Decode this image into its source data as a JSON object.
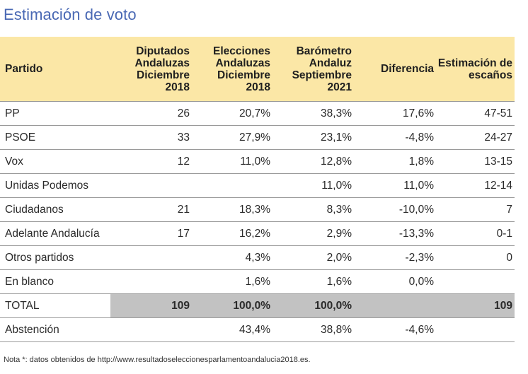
{
  "title": "Estimación de voto",
  "headers": [
    "Partido",
    "Diputados Andaluzas Diciembre 2018",
    "Elecciones Andaluzas Diciembre 2018",
    "Barómetro Andaluz Septiembre 2021",
    "Diferencia",
    "Estimación de escaños"
  ],
  "rows": [
    [
      "PP",
      "26",
      "20,7%",
      "38,3%",
      "17,6%",
      "47-51"
    ],
    [
      "PSOE",
      "33",
      "27,9%",
      "23,1%",
      "-4,8%",
      "24-27"
    ],
    [
      "Vox",
      "12",
      "11,0%",
      "12,8%",
      "1,8%",
      "13-15"
    ],
    [
      "Unidas Podemos",
      "",
      "",
      "11,0%",
      "11,0%",
      "12-14"
    ],
    [
      "Ciudadanos",
      "21",
      "18,3%",
      "8,3%",
      "-10,0%",
      "7"
    ],
    [
      "Adelante Andalucía",
      "17",
      "16,2%",
      "2,9%",
      "-13,3%",
      "0-1"
    ],
    [
      "Otros partidos",
      "",
      "4,3%",
      "2,0%",
      "-2,3%",
      "0"
    ],
    [
      "En blanco",
      "",
      "1,6%",
      "1,6%",
      "0,0%",
      ""
    ],
    [
      "TOTAL",
      "109",
      "100,0%",
      "100,0%",
      "",
      "109"
    ],
    [
      "Abstención",
      "",
      "43,4%",
      "38,8%",
      "-4,6%",
      ""
    ]
  ],
  "note": "Nota *: datos obtenidos de http://www.resultadoseleccionesparlamentoandalucia2018.es."
}
